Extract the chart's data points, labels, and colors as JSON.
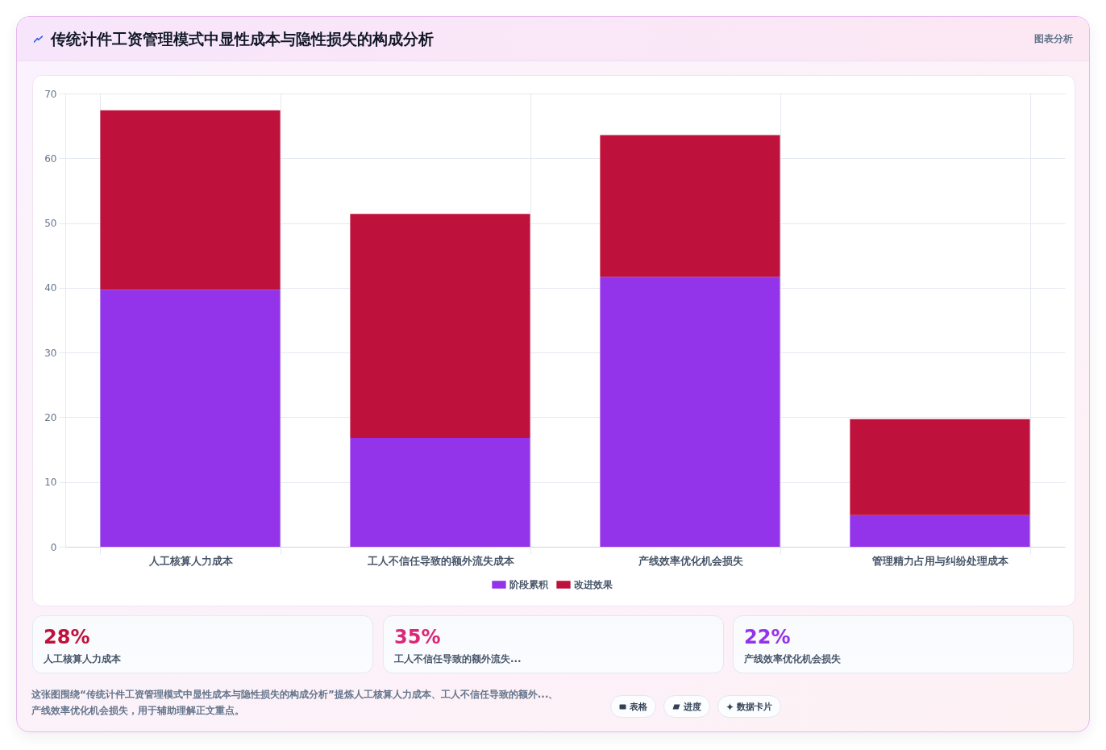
{
  "chart_data": {
    "type": "bar",
    "title": "传统计件工资管理模式中显性成本与隐性损失的构成分析",
    "categories": [
      "人工核算人力成本",
      "工人不信任导致的额外流失成本",
      "产线效率优化机会损失",
      "管理精力占用与纠纷处理成本"
    ],
    "series": [
      {
        "name": "阶段累积",
        "color": "#9333ea",
        "values": [
          39.7,
          16.8,
          41.7,
          4.9
        ]
      },
      {
        "name": "改进效果",
        "color": "#be123c",
        "values": [
          27.7,
          34.6,
          21.9,
          14.8
        ]
      }
    ],
    "stacked": true,
    "ylim": [
      0,
      70
    ],
    "yticks": [
      0,
      10,
      20,
      30,
      40,
      50,
      60,
      70
    ],
    "grid": true,
    "legend": "bottom",
    "annotations": [
      "图表分析",
      "28%",
      "人工核算人力成本",
      "35%",
      "工人不信任导致的额外流失...",
      "22%",
      "产线效率优化机会损失",
      "这张图围绕“传统计件工资管理模式中显性成本与隐性损失的构成分析”提炼人工核算人力成本、工人不信任导致的额外...、产线效率优化机会损失，用于辅助理解正文重点。",
      "表格",
      "进度",
      "数据卡片"
    ]
  }
}
